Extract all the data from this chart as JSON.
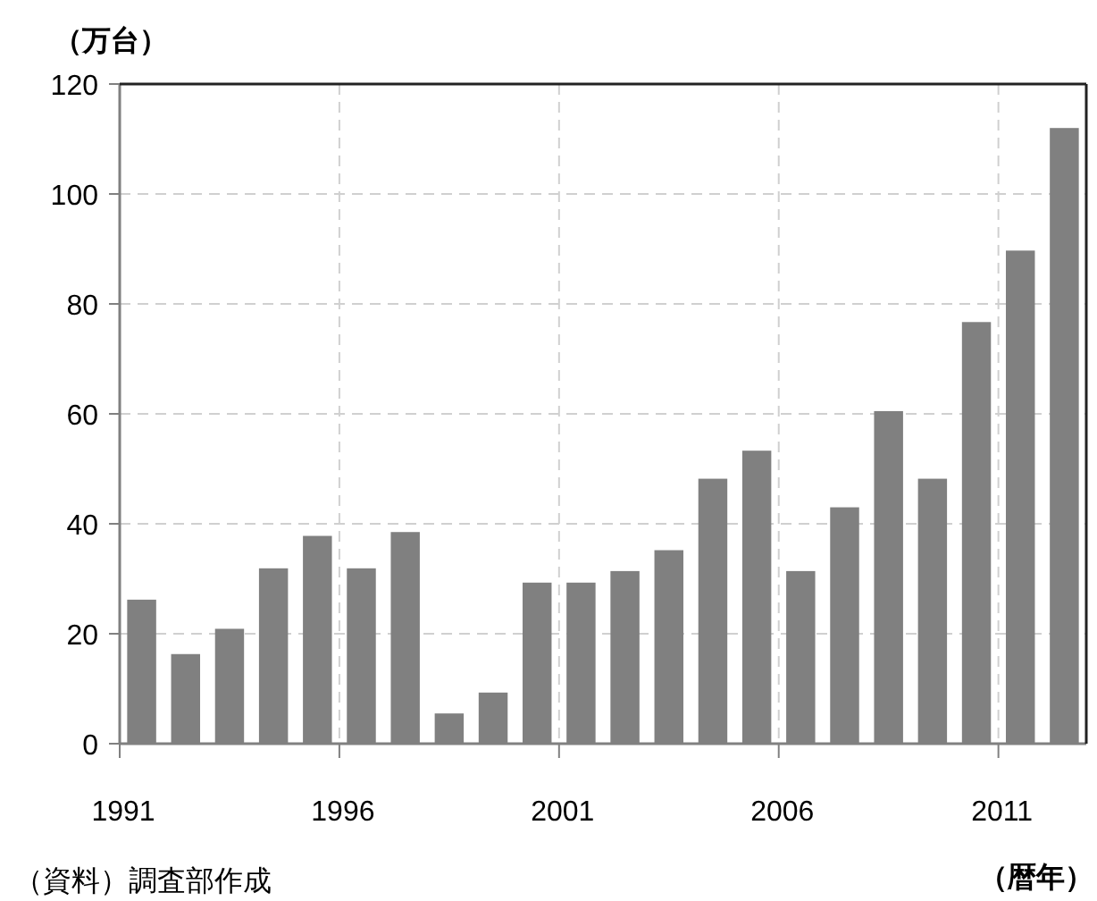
{
  "chart_data": {
    "type": "bar",
    "ylabel": "（万台）",
    "xlabel": "（暦年）",
    "annotations": [
      "（資料）調査部作成"
    ],
    "categories": [
      "1991",
      null,
      null,
      null,
      null,
      "1996",
      null,
      null,
      null,
      null,
      "2001",
      null,
      null,
      null,
      null,
      "2006",
      null,
      null,
      null,
      null,
      "2011",
      null
    ],
    "values": [
      26.2,
      16.3,
      20.9,
      31.9,
      37.8,
      31.9,
      38.5,
      5.5,
      9.3,
      29.3,
      29.3,
      31.4,
      35.2,
      48.2,
      53.3,
      31.4,
      43.0,
      60.5,
      48.2,
      76.7,
      89.7,
      112
    ],
    "color": "#808080",
    "ylim": [
      0,
      120
    ],
    "yticks": [
      0,
      20,
      40,
      60,
      80,
      100,
      120
    ],
    "grid": true
  }
}
